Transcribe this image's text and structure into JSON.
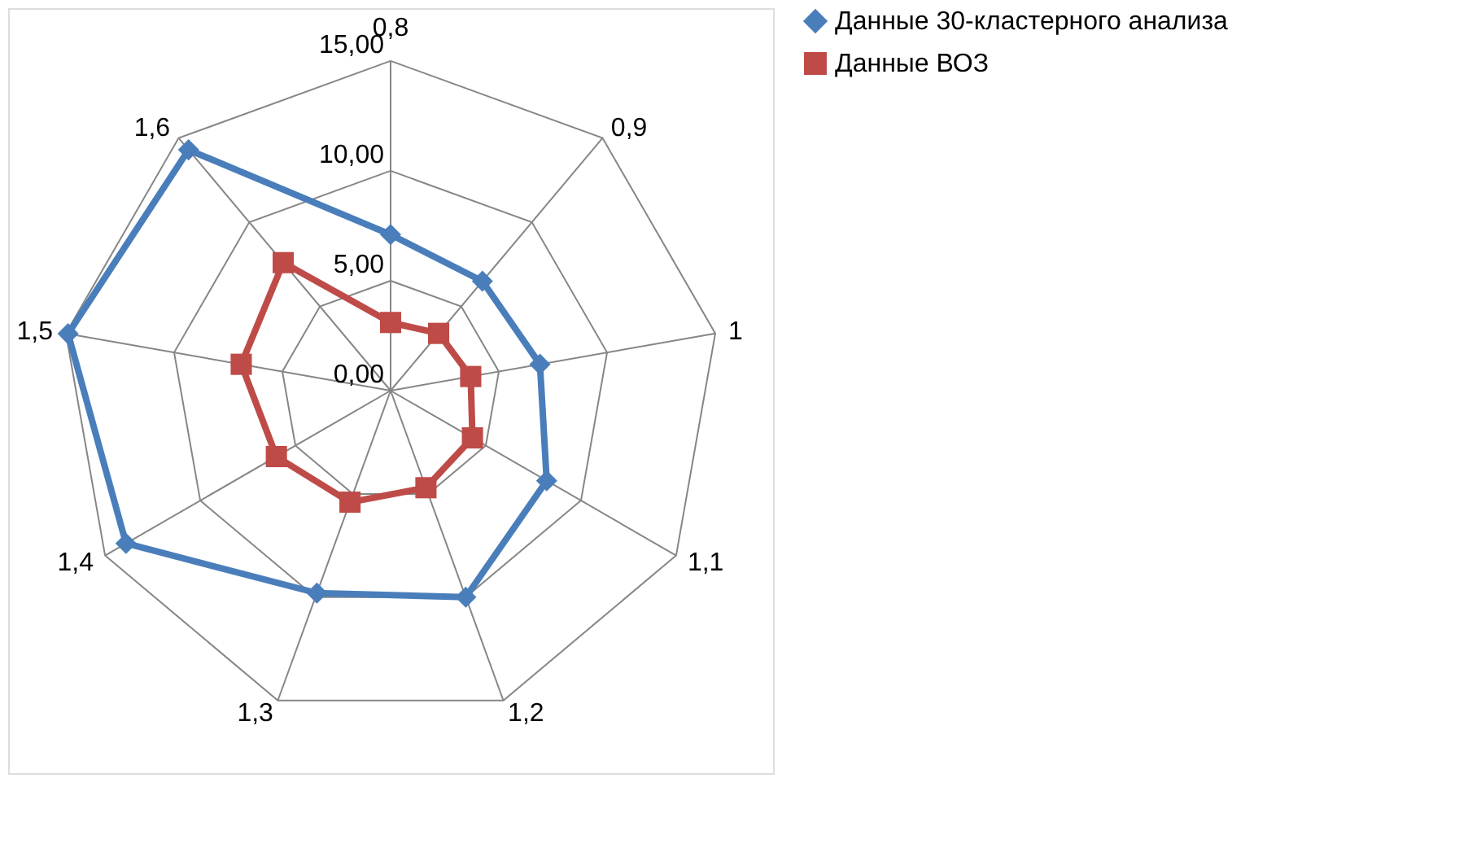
{
  "chart_data": {
    "type": "radar",
    "categories": [
      "0,8",
      "0,9",
      "1",
      "1,1",
      "1,2",
      "1,3",
      "1,4",
      "1,5",
      "1,6"
    ],
    "ylim": [
      0,
      15
    ],
    "yticks": [
      {
        "value": 0,
        "label": "0,00"
      },
      {
        "value": 5,
        "label": "5,00"
      },
      {
        "value": 10,
        "label": "10,00"
      },
      {
        "value": 15,
        "label": "15,00"
      }
    ],
    "grid": true,
    "legend": "right",
    "series": [
      {
        "name": "Данные 30-кластерного анализа",
        "color": "#4a7ebb",
        "marker": "diamond",
        "values": [
          7.1,
          6.5,
          6.9,
          8.2,
          10.0,
          9.8,
          13.9,
          14.9,
          14.3
        ]
      },
      {
        "name": "Данные ВОЗ",
        "color": "#be4b48",
        "marker": "square",
        "values": [
          3.1,
          3.4,
          3.7,
          4.3,
          4.7,
          5.4,
          6.0,
          6.9,
          7.6
        ]
      }
    ]
  }
}
